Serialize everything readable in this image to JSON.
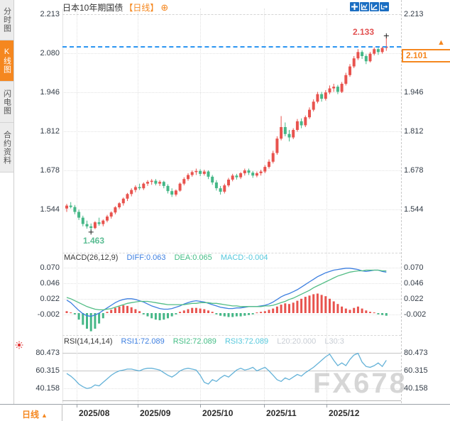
{
  "header": {
    "title": "日本10年期国债",
    "period_tag": "【日线】",
    "add_icon": "⊕"
  },
  "sidebar": {
    "tabs": [
      {
        "label": "分时图",
        "active": false
      },
      {
        "label": "K线图",
        "active": true
      },
      {
        "label": "闪电图",
        "active": false
      },
      {
        "label": "合约资料",
        "active": false
      }
    ]
  },
  "toolbar": {
    "icons": [
      "crosshair",
      "indicator-panel",
      "trend-axis",
      "popout"
    ]
  },
  "colors": {
    "accent_orange": "#f5871f",
    "up_red": "#e8534e",
    "down_green": "#45b787",
    "diff_blue": "#3d7fe0",
    "dea_green": "#52bd85",
    "macd_cyan": "#55c8dc",
    "rsi_line": "#64b2d8",
    "icon_blue": "#1b6ec2",
    "price_line_blue": "#2b95f2",
    "high_label_red": "#e25151",
    "low_label_green": "#5bbd93",
    "axis_text": "#333c47",
    "grey_label": "#c8cdd4",
    "watermark_grey": "#c9c9c9"
  },
  "chart_data": {
    "type": "candlestick",
    "title": "日本10年期国债 日线",
    "y_ticks": [
      "2.213",
      "2.080",
      "1.946",
      "1.812",
      "1.678",
      "1.544"
    ],
    "ylim": [
      1.42,
      2.24
    ],
    "x_ticks": [
      "2025/08",
      "2025/09",
      "2025/10",
      "2025/11",
      "2025/12"
    ],
    "grid": true,
    "high_marker": "2.133",
    "low_marker": "1.463",
    "last_price": "2.101",
    "candles": [
      [
        1.54,
        1.556,
        1.528,
        1.55
      ],
      [
        1.55,
        1.562,
        1.54,
        1.545
      ],
      [
        1.545,
        1.552,
        1.52,
        1.528
      ],
      [
        1.528,
        1.536,
        1.5,
        1.508
      ],
      [
        1.508,
        1.515,
        1.478,
        1.486
      ],
      [
        1.486,
        1.498,
        1.47,
        1.478
      ],
      [
        1.478,
        1.488,
        1.463,
        1.472
      ],
      [
        1.472,
        1.496,
        1.468,
        1.492
      ],
      [
        1.492,
        1.508,
        1.48,
        1.486
      ],
      [
        1.486,
        1.502,
        1.478,
        1.498
      ],
      [
        1.498,
        1.518,
        1.492,
        1.512
      ],
      [
        1.512,
        1.53,
        1.505,
        1.526
      ],
      [
        1.526,
        1.548,
        1.52,
        1.544
      ],
      [
        1.544,
        1.562,
        1.538,
        1.558
      ],
      [
        1.558,
        1.578,
        1.55,
        1.574
      ],
      [
        1.574,
        1.594,
        1.566,
        1.59
      ],
      [
        1.59,
        1.61,
        1.582,
        1.604
      ],
      [
        1.604,
        1.62,
        1.596,
        1.614
      ],
      [
        1.614,
        1.626,
        1.604,
        1.61
      ],
      [
        1.61,
        1.63,
        1.604,
        1.626
      ],
      [
        1.626,
        1.638,
        1.618,
        1.632
      ],
      [
        1.632,
        1.642,
        1.622,
        1.636
      ],
      [
        1.636,
        1.642,
        1.62,
        1.626
      ],
      [
        1.626,
        1.638,
        1.618,
        1.632
      ],
      [
        1.632,
        1.636,
        1.61,
        1.618
      ],
      [
        1.618,
        1.624,
        1.592,
        1.6
      ],
      [
        1.6,
        1.61,
        1.58,
        1.588
      ],
      [
        1.588,
        1.606,
        1.582,
        1.602
      ],
      [
        1.602,
        1.63,
        1.598,
        1.626
      ],
      [
        1.626,
        1.648,
        1.62,
        1.642
      ],
      [
        1.642,
        1.662,
        1.636,
        1.656
      ],
      [
        1.656,
        1.672,
        1.65,
        1.666
      ],
      [
        1.666,
        1.678,
        1.656,
        1.67
      ],
      [
        1.67,
        1.676,
        1.652,
        1.66
      ],
      [
        1.66,
        1.674,
        1.654,
        1.668
      ],
      [
        1.668,
        1.672,
        1.642,
        1.65
      ],
      [
        1.65,
        1.656,
        1.622,
        1.63
      ],
      [
        1.63,
        1.638,
        1.602,
        1.61
      ],
      [
        1.61,
        1.618,
        1.588,
        1.598
      ],
      [
        1.598,
        1.626,
        1.592,
        1.62
      ],
      [
        1.62,
        1.646,
        1.614,
        1.64
      ],
      [
        1.64,
        1.66,
        1.634,
        1.654
      ],
      [
        1.654,
        1.66,
        1.64,
        1.648
      ],
      [
        1.648,
        1.666,
        1.642,
        1.662
      ],
      [
        1.662,
        1.678,
        1.654,
        1.672
      ],
      [
        1.672,
        1.678,
        1.656,
        1.664
      ],
      [
        1.664,
        1.67,
        1.646,
        1.654
      ],
      [
        1.654,
        1.668,
        1.648,
        1.662
      ],
      [
        1.662,
        1.674,
        1.654,
        1.668
      ],
      [
        1.668,
        1.69,
        1.662,
        1.684
      ],
      [
        1.684,
        1.71,
        1.678,
        1.702
      ],
      [
        1.702,
        1.74,
        1.696,
        1.732
      ],
      [
        1.732,
        1.79,
        1.726,
        1.782
      ],
      [
        1.782,
        1.86,
        1.776,
        1.822
      ],
      [
        1.822,
        1.838,
        1.79,
        1.798
      ],
      [
        1.798,
        1.812,
        1.772,
        1.786
      ],
      [
        1.786,
        1.818,
        1.78,
        1.812
      ],
      [
        1.812,
        1.85,
        1.806,
        1.842
      ],
      [
        1.842,
        1.852,
        1.818,
        1.828
      ],
      [
        1.828,
        1.862,
        1.822,
        1.856
      ],
      [
        1.856,
        1.89,
        1.85,
        1.882
      ],
      [
        1.882,
        1.918,
        1.876,
        1.91
      ],
      [
        1.91,
        1.944,
        1.904,
        1.936
      ],
      [
        1.936,
        1.944,
        1.91,
        1.92
      ],
      [
        1.92,
        1.95,
        1.914,
        1.942
      ],
      [
        1.942,
        1.966,
        1.936,
        1.956
      ],
      [
        1.956,
        1.972,
        1.944,
        1.962
      ],
      [
        1.962,
        1.968,
        1.936,
        1.944
      ],
      [
        1.944,
        1.978,
        1.94,
        1.972
      ],
      [
        1.972,
        2.01,
        1.966,
        2.002
      ],
      [
        2.002,
        2.04,
        1.996,
        2.032
      ],
      [
        2.032,
        2.068,
        2.026,
        2.06
      ],
      [
        2.06,
        2.092,
        2.054,
        2.082
      ],
      [
        2.082,
        2.088,
        2.058,
        2.068
      ],
      [
        2.068,
        2.074,
        2.04,
        2.05
      ],
      [
        2.05,
        2.082,
        2.046,
        2.076
      ],
      [
        2.076,
        2.098,
        2.07,
        2.092
      ],
      [
        2.092,
        2.098,
        2.072,
        2.082
      ],
      [
        2.082,
        2.1,
        2.076,
        2.096
      ],
      [
        2.096,
        2.133,
        2.086,
        2.101
      ]
    ],
    "macd": {
      "label": "MACD(26,12,9)",
      "diff_label": "DIFF:0.063",
      "dea_label": "DEA:0.065",
      "macd_label": "MACD:-0.004",
      "y_ticks": [
        "0.070",
        "0.046",
        "0.022",
        "-0.002"
      ],
      "diff": [
        0.02,
        0.016,
        0.01,
        0.004,
        -0.001,
        -0.004,
        -0.005,
        -0.003,
        0.0,
        0.004,
        0.008,
        0.012,
        0.016,
        0.019,
        0.021,
        0.022,
        0.022,
        0.021,
        0.019,
        0.017,
        0.014,
        0.011,
        0.009,
        0.007,
        0.006,
        0.006,
        0.007,
        0.009,
        0.011,
        0.014,
        0.016,
        0.018,
        0.019,
        0.018,
        0.017,
        0.015,
        0.013,
        0.011,
        0.009,
        0.008,
        0.007,
        0.007,
        0.008,
        0.008,
        0.009,
        0.01,
        0.01,
        0.01,
        0.011,
        0.012,
        0.014,
        0.017,
        0.021,
        0.025,
        0.028,
        0.03,
        0.033,
        0.036,
        0.04,
        0.044,
        0.048,
        0.052,
        0.056,
        0.059,
        0.062,
        0.064,
        0.066,
        0.067,
        0.068,
        0.069,
        0.069,
        0.068,
        0.067,
        0.065,
        0.064,
        0.065,
        0.066,
        0.066,
        0.064,
        0.063
      ],
      "dea": [
        0.024,
        0.022,
        0.019,
        0.016,
        0.013,
        0.01,
        0.008,
        0.006,
        0.005,
        0.005,
        0.006,
        0.007,
        0.009,
        0.011,
        0.013,
        0.015,
        0.016,
        0.017,
        0.018,
        0.018,
        0.018,
        0.017,
        0.016,
        0.015,
        0.014,
        0.013,
        0.013,
        0.013,
        0.013,
        0.013,
        0.014,
        0.015,
        0.015,
        0.016,
        0.016,
        0.016,
        0.015,
        0.015,
        0.014,
        0.013,
        0.012,
        0.011,
        0.011,
        0.01,
        0.01,
        0.01,
        0.01,
        0.01,
        0.01,
        0.011,
        0.011,
        0.012,
        0.014,
        0.016,
        0.018,
        0.021,
        0.023,
        0.026,
        0.029,
        0.032,
        0.035,
        0.039,
        0.042,
        0.045,
        0.048,
        0.051,
        0.054,
        0.057,
        0.059,
        0.061,
        0.063,
        0.064,
        0.065,
        0.065,
        0.066,
        0.066,
        0.066,
        0.066,
        0.065,
        0.065
      ],
      "hist": [
        0.003,
        0.001,
        -0.002,
        -0.01,
        -0.018,
        -0.024,
        -0.028,
        -0.024,
        -0.016,
        -0.008,
        0.002,
        0.005,
        0.008,
        0.01,
        0.012,
        0.011,
        0.009,
        0.006,
        0.003,
        -0.002,
        -0.005,
        -0.008,
        -0.01,
        -0.011,
        -0.01,
        -0.008,
        -0.005,
        -0.002,
        0.002,
        0.004,
        0.006,
        0.008,
        0.008,
        0.007,
        0.006,
        0.004,
        0.002,
        -0.002,
        -0.004,
        -0.005,
        -0.006,
        -0.006,
        -0.005,
        -0.005,
        -0.004,
        -0.003,
        -0.002,
        0.001,
        0.002,
        0.003,
        0.005,
        0.007,
        0.01,
        0.013,
        0.015,
        0.014,
        0.016,
        0.019,
        0.022,
        0.025,
        0.027,
        0.029,
        0.03,
        0.028,
        0.026,
        0.022,
        0.018,
        0.014,
        0.01,
        0.007,
        0.005,
        0.008,
        0.01,
        0.007,
        0.004,
        0.002,
        0.001,
        -0.002,
        -0.003,
        -0.004
      ]
    },
    "rsi": {
      "label": "RSI(14,14,14)",
      "rsi1_label": "RSI1:72.089",
      "rsi2_label": "RSI2:72.089",
      "rsi3_label": "RSI3:72.089",
      "l20_label": "L20:20.000",
      "l30_label": "L30:3",
      "y_ticks": [
        "80.473",
        "60.315",
        "40.158"
      ],
      "values": [
        57,
        54,
        50,
        45,
        42,
        40,
        41,
        44,
        43,
        47,
        51,
        55,
        58,
        60,
        61,
        62,
        62,
        61,
        60,
        62,
        63,
        63,
        62,
        61,
        58,
        55,
        53,
        56,
        60,
        62,
        63,
        62,
        61,
        55,
        47,
        45,
        50,
        48,
        52,
        55,
        53,
        57,
        61,
        63,
        61,
        62,
        64,
        60,
        62,
        64,
        60,
        55,
        50,
        48,
        52,
        50,
        53,
        56,
        54,
        58,
        61,
        64,
        68,
        72,
        76,
        79,
        72,
        66,
        69,
        66,
        73,
        78,
        80,
        70,
        65,
        64,
        66,
        69,
        65,
        72
      ]
    }
  },
  "bottom_bar": {
    "period": "日线",
    "period_arrow": "▲"
  },
  "watermark": "FX678"
}
